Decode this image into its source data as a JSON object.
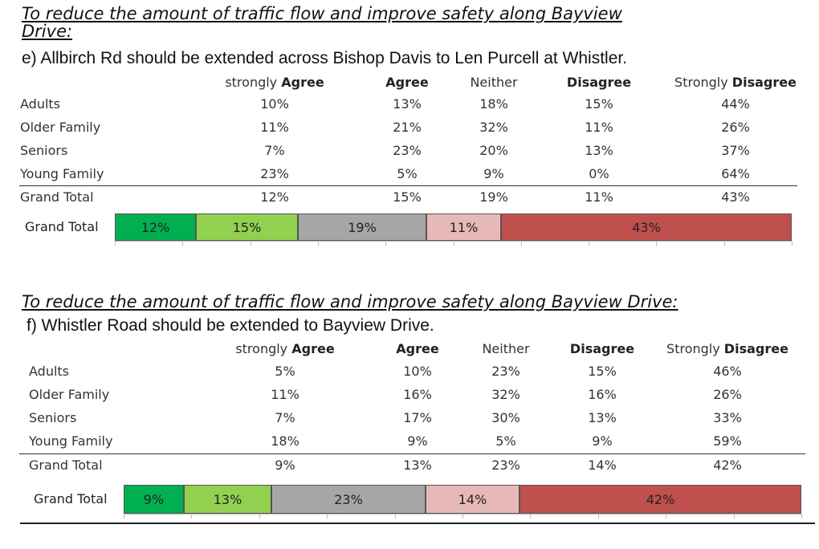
{
  "colors": {
    "strongly_agree": "#00b050",
    "agree": "#92d050",
    "neither": "#a6a6a6",
    "disagree": "#e6b9b8",
    "strongly_disagree": "#c0504d"
  },
  "columns": [
    {
      "pre": "strongly ",
      "bold": "Agree"
    },
    {
      "pre": "",
      "bold": "Agree"
    },
    {
      "pre": "Neither",
      "bold": ""
    },
    {
      "pre": "",
      "bold": "Disagree"
    },
    {
      "pre": "Strongly ",
      "bold": "Disagree"
    }
  ],
  "chart_data": [
    {
      "type": "table",
      "heading_line1": "To reduce the amount of traffic flow and improve safety along Bayview",
      "heading_line2": "Drive:",
      "question": "e)  Allbirch Rd should be extended across Bishop Davis to Len Purcell at Whistler.",
      "rows": [
        {
          "label": "Adults",
          "values": [
            "10%",
            "13%",
            "18%",
            "15%",
            "44%"
          ]
        },
        {
          "label": "Older Family",
          "values": [
            "11%",
            "21%",
            "32%",
            "11%",
            "26%"
          ]
        },
        {
          "label": "Seniors",
          "values": [
            "7%",
            "23%",
            "20%",
            "13%",
            "37%"
          ]
        },
        {
          "label": "Young Family",
          "values": [
            "23%",
            "5%",
            "9%",
            "0%",
            "64%"
          ]
        }
      ],
      "total": {
        "label": "Grand Total",
        "values": [
          "12%",
          "15%",
          "19%",
          "11%",
          "43%"
        ]
      },
      "bar": {
        "type": "bar",
        "label": "Grand Total",
        "values": [
          12,
          15,
          19,
          11,
          43
        ],
        "labels": [
          "12%",
          "15%",
          "19%",
          "11%",
          "43%"
        ]
      }
    },
    {
      "type": "table",
      "heading_line1": "To reduce the amount of traffic flow and improve safety along Bayview Drive:",
      "heading_line2": "",
      "question": "f) Whistler Road should be extended to Bayview Drive.",
      "rows": [
        {
          "label": "Adults",
          "values": [
            "5%",
            "10%",
            "23%",
            "15%",
            "46%"
          ]
        },
        {
          "label": "Older Family",
          "values": [
            "11%",
            "16%",
            "32%",
            "16%",
            "26%"
          ]
        },
        {
          "label": "Seniors",
          "values": [
            "7%",
            "17%",
            "30%",
            "13%",
            "33%"
          ]
        },
        {
          "label": "Young Family",
          "values": [
            "18%",
            "9%",
            "5%",
            "9%",
            "59%"
          ]
        }
      ],
      "total": {
        "label": "Grand Total",
        "values": [
          "9%",
          "13%",
          "23%",
          "14%",
          "42%"
        ]
      },
      "bar": {
        "type": "bar",
        "label": "Grand Total",
        "values": [
          9,
          13,
          23,
          14,
          42
        ],
        "labels": [
          "9%",
          "13%",
          "23%",
          "14%",
          "42%"
        ]
      }
    }
  ]
}
